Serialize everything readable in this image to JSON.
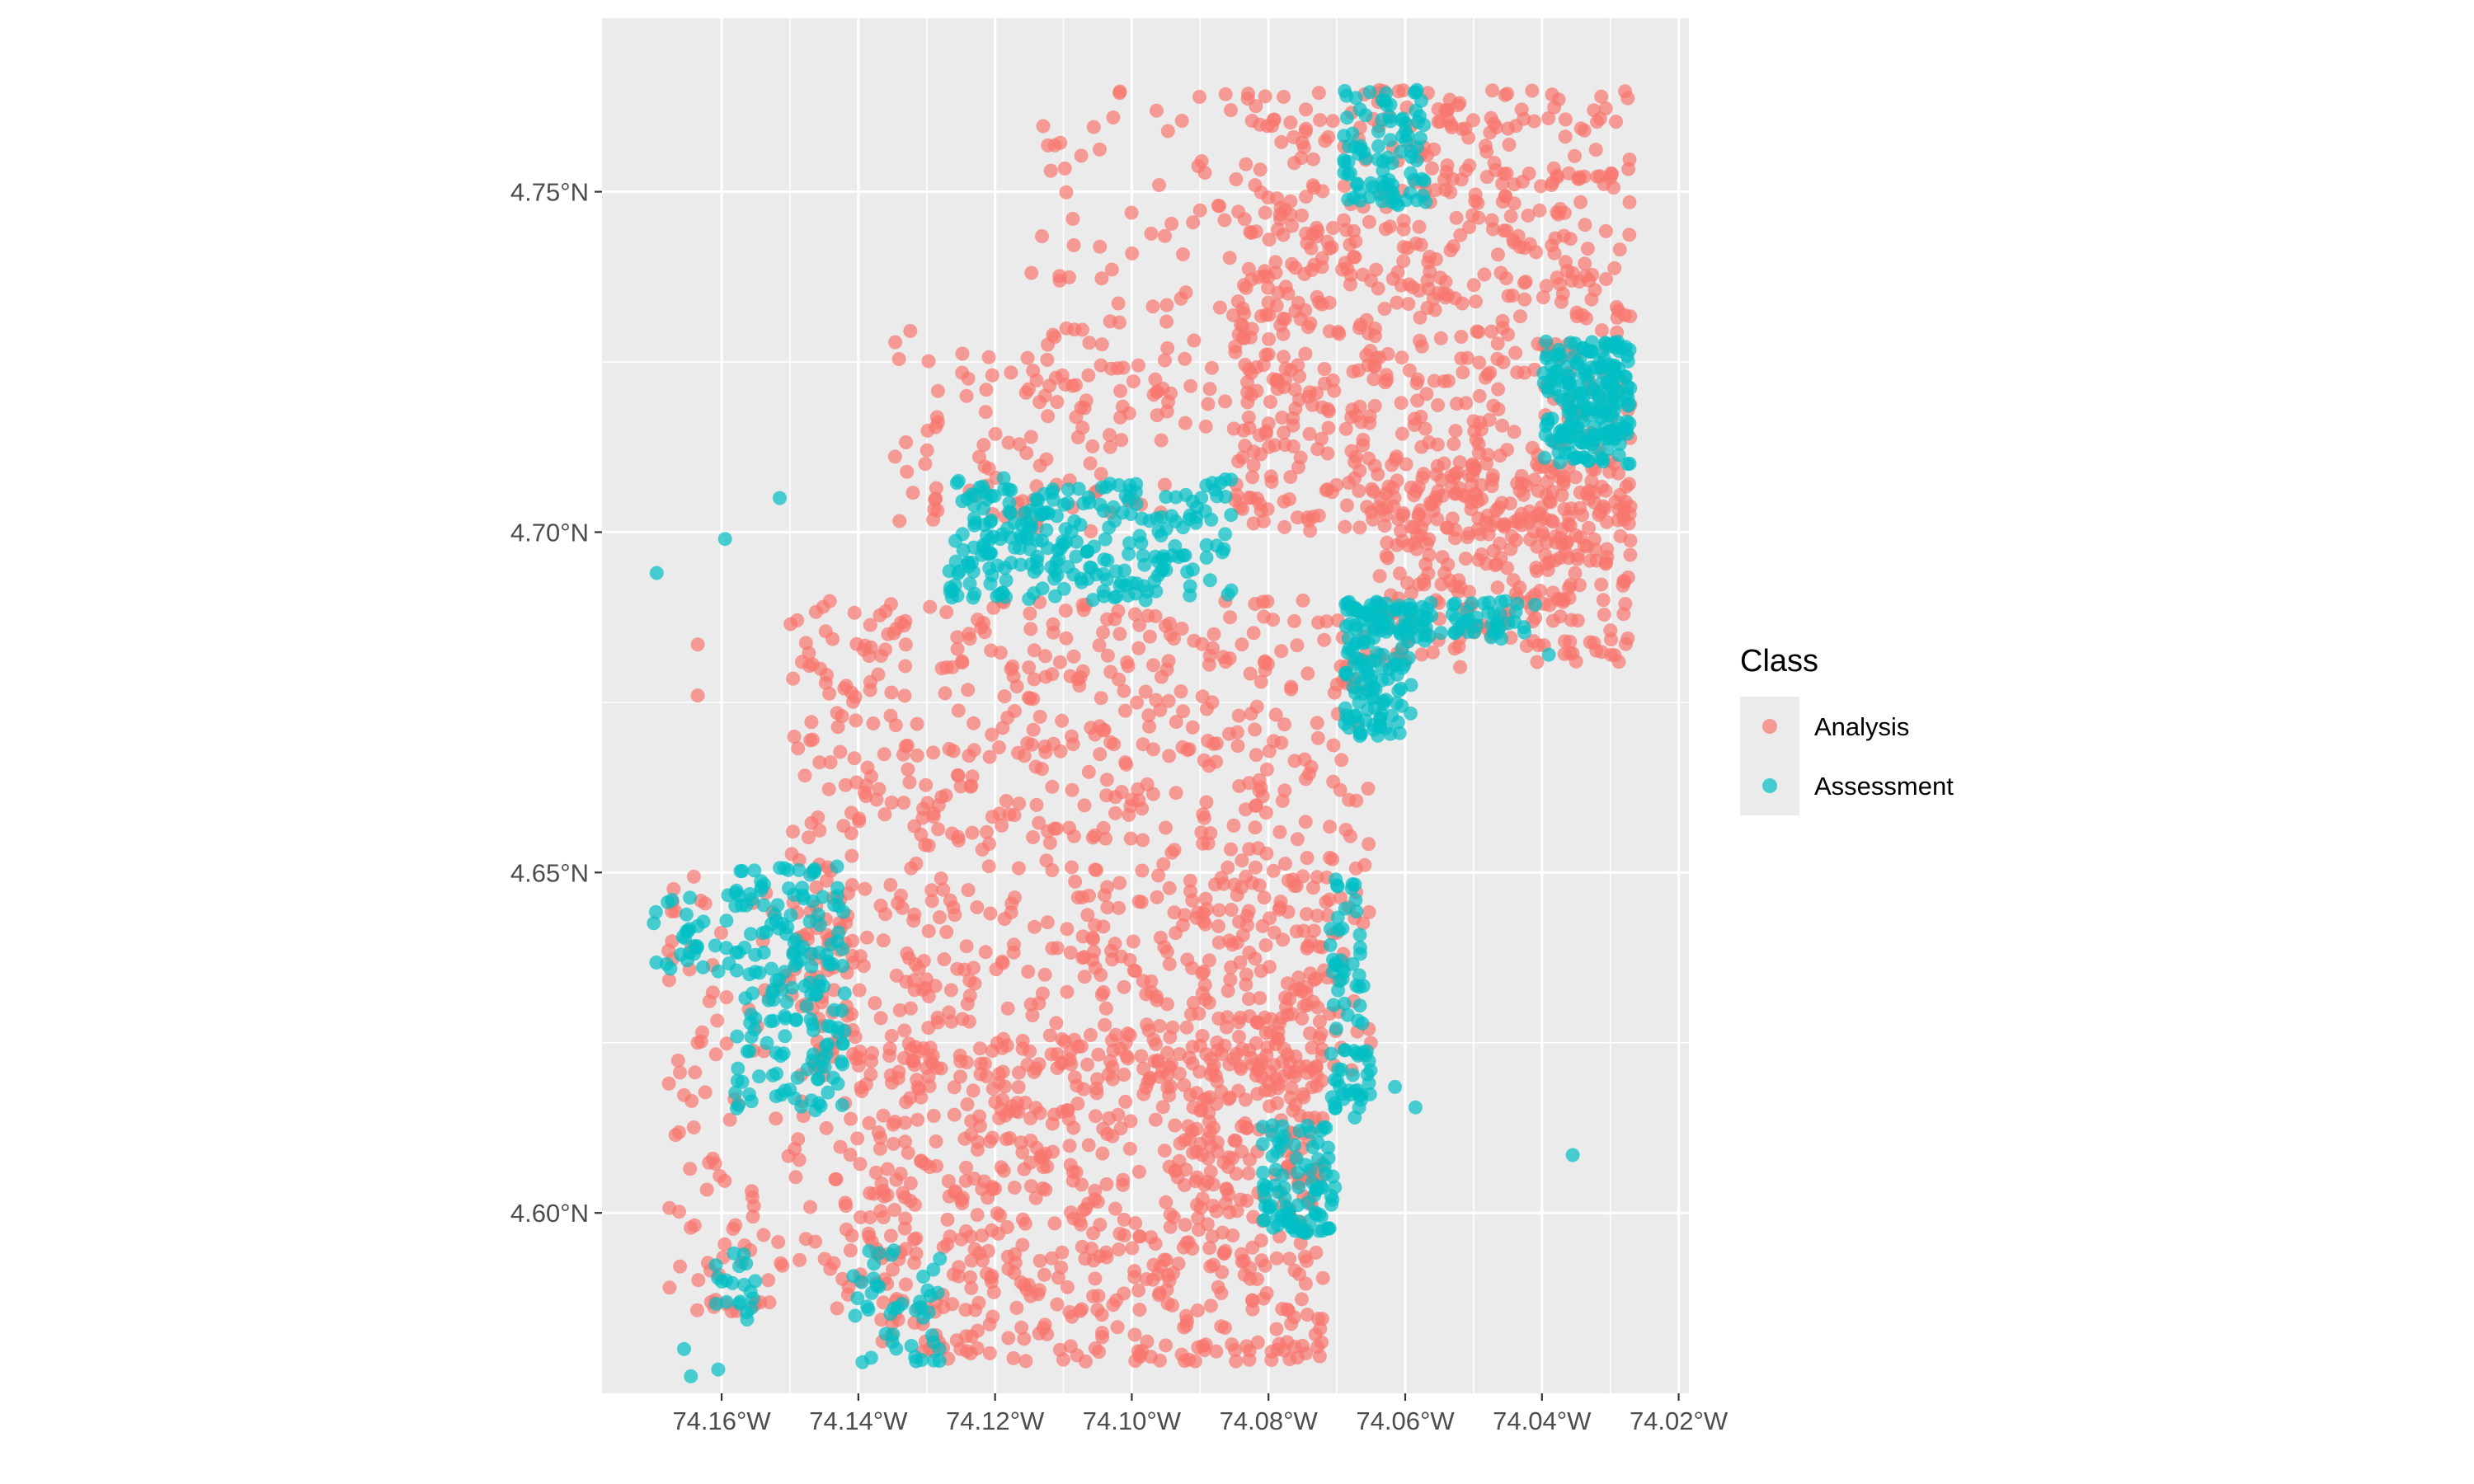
{
  "chart_data": {
    "type": "scatter",
    "title": "",
    "xlabel": "",
    "ylabel": "",
    "xlim": [
      -74.1775,
      -74.0185
    ],
    "ylim": [
      4.5735,
      4.7755
    ],
    "x_ticks": [
      {
        "value": -74.16,
        "label": "74.16°W"
      },
      {
        "value": -74.14,
        "label": "74.14°W"
      },
      {
        "value": -74.12,
        "label": "74.12°W"
      },
      {
        "value": -74.1,
        "label": "74.10°W"
      },
      {
        "value": -74.08,
        "label": "74.08°W"
      },
      {
        "value": -74.06,
        "label": "74.06°W"
      },
      {
        "value": -74.04,
        "label": "74.04°W"
      },
      {
        "value": -74.02,
        "label": "74.02°W"
      }
    ],
    "y_ticks": [
      {
        "value": 4.6,
        "label": "4.60°N"
      },
      {
        "value": 4.65,
        "label": "4.65°N"
      },
      {
        "value": 4.7,
        "label": "4.70°N"
      },
      {
        "value": 4.75,
        "label": "4.75°N"
      }
    ],
    "grid": true,
    "legend": {
      "title": "Class",
      "position": "right"
    },
    "series": [
      {
        "name": "Analysis",
        "color": "#F8766D",
        "regions": [
          {
            "lon": [
              -74.085,
              -74.027
            ],
            "lat": [
              4.7,
              4.765
            ],
            "n": 700
          },
          {
            "lon": [
              -74.065,
              -74.027
            ],
            "lat": [
              4.68,
              4.71
            ],
            "n": 300
          },
          {
            "lon": [
              -74.115,
              -74.08
            ],
            "lat": [
              4.715,
              4.765
            ],
            "n": 110
          },
          {
            "lon": [
              -74.135,
              -74.095
            ],
            "lat": [
              4.7,
              4.73
            ],
            "n": 100
          },
          {
            "lon": [
              -74.15,
              -74.065
            ],
            "lat": [
              4.62,
              4.69
            ],
            "n": 800
          },
          {
            "lon": [
              -74.14,
              -74.072
            ],
            "lat": [
              4.578,
              4.625
            ],
            "n": 650
          },
          {
            "lon": [
              -74.168,
              -74.14
            ],
            "lat": [
              4.585,
              4.65
            ],
            "n": 160
          },
          {
            "lon": [
              -74.09,
              -74.072
            ],
            "lat": [
              4.6,
              4.65
            ],
            "n": 120
          }
        ],
        "points": [
          [
            -74.1635,
            4.6835
          ],
          [
            -74.1635,
            4.676
          ],
          [
            -74.035,
            4.681
          ],
          [
            -74.13,
            4.586
          ],
          [
            -74.0755,
            4.591
          ],
          [
            -74.0555,
            4.69
          ]
        ]
      },
      {
        "name": "Assessment",
        "color": "#00BFC4",
        "regions": [
          {
            "lon": [
              -74.127,
              -74.085
            ],
            "lat": [
              4.69,
              4.708
            ],
            "n": 260
          },
          {
            "lon": [
              -74.069,
              -74.059
            ],
            "lat": [
              4.67,
              4.69
            ],
            "n": 120
          },
          {
            "lon": [
              -74.069,
              -74.041
            ],
            "lat": [
              4.684,
              4.69
            ],
            "n": 80
          },
          {
            "lon": [
              -74.04,
              -74.027
            ],
            "lat": [
              4.71,
              4.728
            ],
            "n": 200
          },
          {
            "lon": [
              -74.069,
              -74.057
            ],
            "lat": [
              4.748,
              4.765
            ],
            "n": 90
          },
          {
            "lon": [
              -74.158,
              -74.142
            ],
            "lat": [
              4.615,
              4.651
            ],
            "n": 170
          },
          {
            "lon": [
              -74.17,
              -74.157
            ],
            "lat": [
              4.635,
              4.648
            ],
            "n": 35
          },
          {
            "lon": [
              -74.081,
              -74.07
            ],
            "lat": [
              4.597,
              4.613
            ],
            "n": 90
          },
          {
            "lon": [
              -74.071,
              -74.065
            ],
            "lat": [
              4.614,
              4.624
            ],
            "n": 35
          },
          {
            "lon": [
              -74.071,
              -74.066
            ],
            "lat": [
              4.625,
              4.651
            ],
            "n": 40
          },
          {
            "lon": [
              -74.141,
              -74.128
            ],
            "lat": [
              4.578,
              4.595
            ],
            "n": 45
          },
          {
            "lon": [
              -74.161,
              -74.155
            ],
            "lat": [
              4.584,
              4.595
            ],
            "n": 20
          }
        ],
        "points": [
          [
            -74.1695,
            4.694
          ],
          [
            -74.1595,
            4.699
          ],
          [
            -74.1515,
            4.705
          ],
          [
            -74.0585,
            4.6155
          ],
          [
            -74.0615,
            4.6185
          ],
          [
            -74.0355,
            4.6085
          ],
          [
            -74.039,
            4.682
          ],
          [
            -74.1655,
            4.58
          ],
          [
            -74.1605,
            4.577
          ],
          [
            -74.1645,
            4.576
          ]
        ]
      }
    ]
  }
}
